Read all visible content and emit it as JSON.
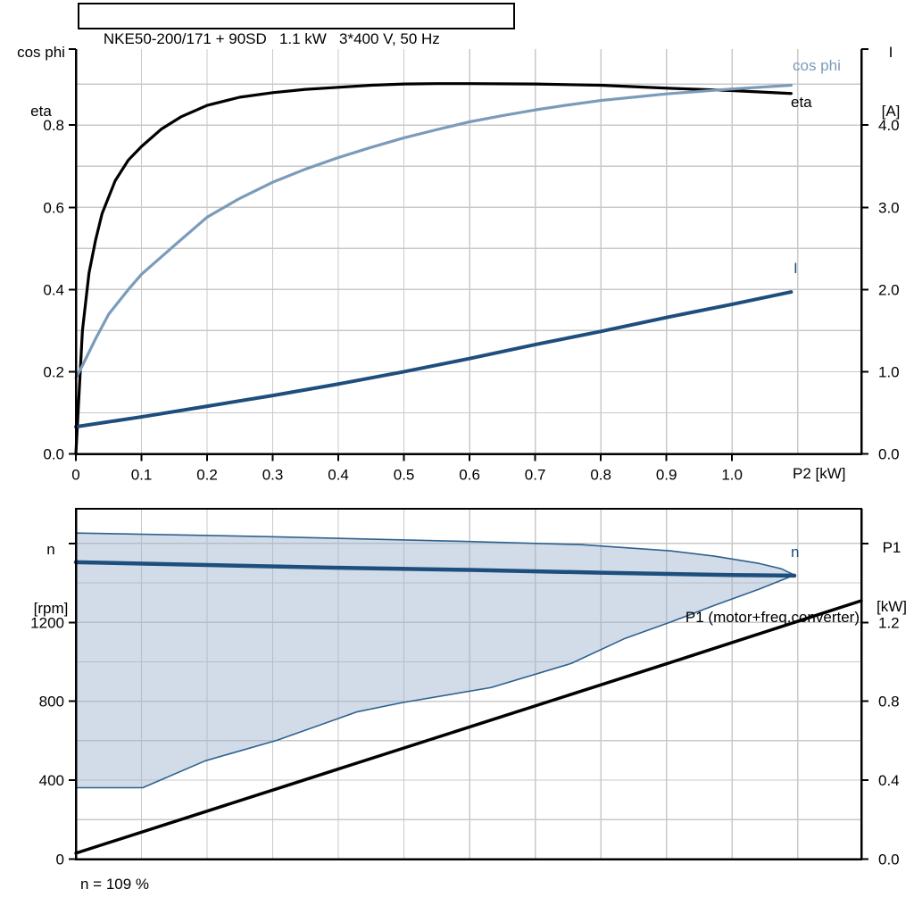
{
  "title_box": {
    "text": "NKE50-200/171 + 90SD   1.1 kW   3*400 V, 50 Hz"
  },
  "footer": {
    "text": "n = 109 %"
  },
  "colors": {
    "eta": "#000000",
    "cos_phi": "#7B9BBA",
    "current": "#1E4E7D",
    "speed": "#1E4E7D",
    "p1": "#000000",
    "region_fill": "rgba(152,177,204,0.45)",
    "region_border": "#2E618F",
    "grid": "#C9C9C9",
    "axis": "#000000",
    "text": "#000000"
  },
  "chart_data": [
    {
      "type": "line",
      "name": "motor-performance",
      "x_axis": {
        "label": "P2 [kW]",
        "min": 0,
        "max": 1.197,
        "grid_step": 0.1,
        "ticks": [
          {
            "v": 0,
            "t": "0"
          },
          {
            "v": 0.1,
            "t": "0.1"
          },
          {
            "v": 0.2,
            "t": "0.2"
          },
          {
            "v": 0.3,
            "t": "0.3"
          },
          {
            "v": 0.4,
            "t": "0.4"
          },
          {
            "v": 0.5,
            "t": "0.5"
          },
          {
            "v": 0.6,
            "t": "0.6"
          },
          {
            "v": 0.7,
            "t": "0.7"
          },
          {
            "v": 0.8,
            "t": "0.8"
          },
          {
            "v": 0.9,
            "t": "0.9"
          },
          {
            "v": 1.0,
            "t": "1.0"
          }
        ]
      },
      "y_left": {
        "label_lines": [
          "cos phi",
          "eta"
        ],
        "min": 0,
        "max": 0.985,
        "grid_step": 0.1,
        "ticks": [
          {
            "v": 0,
            "t": "0.0"
          },
          {
            "v": 0.2,
            "t": "0.2"
          },
          {
            "v": 0.4,
            "t": "0.4"
          },
          {
            "v": 0.6,
            "t": "0.6"
          },
          {
            "v": 0.8,
            "t": "0.8"
          }
        ]
      },
      "y_right": {
        "label_lines": [
          "I",
          "[A]"
        ],
        "min": 0,
        "max": 4.925,
        "ticks": [
          {
            "v": 0,
            "t": "0.0"
          },
          {
            "v": 1,
            "t": "1.0"
          },
          {
            "v": 2,
            "t": "2.0"
          },
          {
            "v": 3,
            "t": "3.0"
          },
          {
            "v": 4,
            "t": "4.0"
          }
        ]
      },
      "series": [
        {
          "key": "eta",
          "name": "eta",
          "axis": "left",
          "width": 3.2,
          "points": [
            [
              0,
              0
            ],
            [
              0.01,
              0.3
            ],
            [
              0.02,
              0.44
            ],
            [
              0.03,
              0.52
            ],
            [
              0.04,
              0.585
            ],
            [
              0.06,
              0.665
            ],
            [
              0.08,
              0.715
            ],
            [
              0.1,
              0.748
            ],
            [
              0.13,
              0.79
            ],
            [
              0.16,
              0.82
            ],
            [
              0.2,
              0.848
            ],
            [
              0.25,
              0.868
            ],
            [
              0.3,
              0.879
            ],
            [
              0.35,
              0.887
            ],
            [
              0.4,
              0.892
            ],
            [
              0.45,
              0.897
            ],
            [
              0.5,
              0.9
            ],
            [
              0.55,
              0.901
            ],
            [
              0.6,
              0.901
            ],
            [
              0.7,
              0.9
            ],
            [
              0.8,
              0.897
            ],
            [
              0.9,
              0.89
            ],
            [
              1.0,
              0.884
            ],
            [
              1.09,
              0.877
            ]
          ]
        },
        {
          "key": "cos_phi",
          "name": "cos phi",
          "axis": "left",
          "width": 3.2,
          "points": [
            [
              0,
              0.185
            ],
            [
              0.01,
              0.215
            ],
            [
              0.03,
              0.28
            ],
            [
              0.05,
              0.34
            ],
            [
              0.08,
              0.4
            ],
            [
              0.1,
              0.437
            ],
            [
              0.15,
              0.507
            ],
            [
              0.2,
              0.576
            ],
            [
              0.25,
              0.622
            ],
            [
              0.3,
              0.661
            ],
            [
              0.35,
              0.693
            ],
            [
              0.4,
              0.721
            ],
            [
              0.45,
              0.746
            ],
            [
              0.5,
              0.769
            ],
            [
              0.55,
              0.789
            ],
            [
              0.6,
              0.808
            ],
            [
              0.65,
              0.823
            ],
            [
              0.7,
              0.837
            ],
            [
              0.75,
              0.849
            ],
            [
              0.8,
              0.86
            ],
            [
              0.85,
              0.868
            ],
            [
              0.9,
              0.876
            ],
            [
              0.95,
              0.882
            ],
            [
              1.0,
              0.888
            ],
            [
              1.09,
              0.897
            ]
          ]
        },
        {
          "key": "current",
          "name": "I",
          "axis": "right",
          "width": 4,
          "points": [
            [
              0,
              0.33
            ],
            [
              0.1,
              0.45
            ],
            [
              0.2,
              0.58
            ],
            [
              0.3,
              0.71
            ],
            [
              0.4,
              0.85
            ],
            [
              0.5,
              1.0
            ],
            [
              0.6,
              1.16
            ],
            [
              0.7,
              1.33
            ],
            [
              0.8,
              1.49
            ],
            [
              0.9,
              1.66
            ],
            [
              1.0,
              1.82
            ],
            [
              1.09,
              1.97
            ]
          ]
        }
      ],
      "curve_labels": [
        {
          "text": "cos phi",
          "color_key": "cos_phi"
        },
        {
          "text": "eta",
          "color_key": "eta"
        },
        {
          "text": "I",
          "color_key": "current"
        }
      ]
    },
    {
      "type": "line",
      "name": "speed-and-power",
      "x_axis": {
        "label": "",
        "min": 0,
        "max": 1.197,
        "grid_step": 0.1,
        "ticks": []
      },
      "y_left": {
        "label_lines": [
          "n",
          "[rpm]"
        ],
        "min": 0,
        "max": 1776,
        "grid_step": 200,
        "ticks": [
          {
            "v": 0,
            "t": "0"
          },
          {
            "v": 400,
            "t": "400"
          },
          {
            "v": 800,
            "t": "800"
          },
          {
            "v": 1200,
            "t": "1200"
          },
          {
            "v": 1600,
            "t": ""
          }
        ]
      },
      "y_right": {
        "label_lines": [
          "P1",
          "[kW]"
        ],
        "min": 0,
        "max": 1.776,
        "ticks": [
          {
            "v": 0,
            "t": "0.0"
          },
          {
            "v": 0.4,
            "t": "0.4"
          },
          {
            "v": 0.8,
            "t": "0.8"
          },
          {
            "v": 1.2,
            "t": "1.2"
          },
          {
            "v": 1.6,
            "t": ""
          }
        ]
      },
      "region": {
        "name": "speed control range",
        "axis": "left",
        "upper": [
          [
            0,
            1653
          ],
          [
            0.29,
            1635
          ],
          [
            0.565,
            1613
          ],
          [
            0.77,
            1594
          ],
          [
            0.905,
            1563
          ],
          [
            0.973,
            1536
          ],
          [
            1.041,
            1499
          ],
          [
            1.075,
            1472
          ],
          [
            1.095,
            1440
          ]
        ],
        "lower": [
          [
            0,
            362
          ],
          [
            0.102,
            362
          ],
          [
            0.197,
            498
          ],
          [
            0.306,
            602
          ],
          [
            0.429,
            747
          ],
          [
            0.497,
            793
          ],
          [
            0.633,
            870
          ],
          [
            0.755,
            992
          ],
          [
            0.837,
            1119
          ],
          [
            0.905,
            1200
          ],
          [
            0.973,
            1286
          ],
          [
            1.041,
            1368
          ],
          [
            1.095,
            1440
          ]
        ]
      },
      "series": [
        {
          "key": "speed",
          "name": "n",
          "axis": "left",
          "width": 4.5,
          "points": [
            [
              0,
              1505
            ],
            [
              0.2,
              1491
            ],
            [
              0.4,
              1477
            ],
            [
              0.6,
              1466
            ],
            [
              0.8,
              1452
            ],
            [
              1.0,
              1440
            ],
            [
              1.095,
              1437
            ]
          ]
        },
        {
          "key": "p1",
          "name": "P1 (motor+freq.converter)",
          "axis": "right",
          "width": 3.5,
          "points": [
            [
              0,
              0.03
            ],
            [
              0.3,
              0.35
            ],
            [
              0.6,
              0.67
            ],
            [
              0.9,
              0.99
            ],
            [
              1.197,
              1.31
            ]
          ]
        }
      ],
      "curve_labels": [
        {
          "text": "n",
          "color_key": "speed"
        },
        {
          "text": "P1 (motor+freq.converter)",
          "color_key": "p1"
        }
      ]
    }
  ]
}
